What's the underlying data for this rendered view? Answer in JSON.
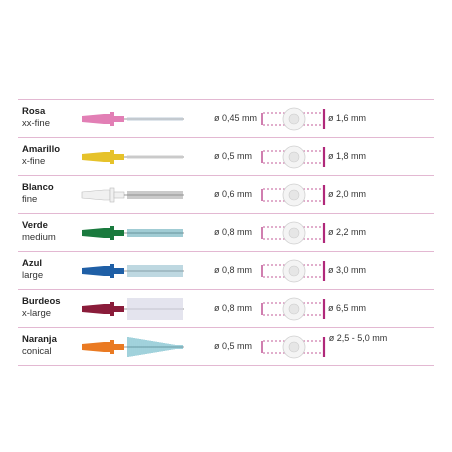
{
  "rows": [
    {
      "color_name": "Rosa",
      "size_name": "xx-fine",
      "wire": "ø 0,45 mm",
      "diameter": "ø 1,6 mm",
      "handle_color": "#e27fb5",
      "bristle_color": "#b9c8d6",
      "bristle": "thin"
    },
    {
      "color_name": "Amarillo",
      "size_name": "x-fine",
      "wire": "ø 0,5 mm",
      "diameter": "ø 1,8 mm",
      "handle_color": "#e6c22a",
      "bristle_color": "#c9c9c9",
      "bristle": "thin"
    },
    {
      "color_name": "Blanco",
      "size_name": "fine",
      "wire": "ø 0,6 mm",
      "diameter": "ø 2,0 mm",
      "handle_color": "#f0f0f0",
      "bristle_color": "#8a8a8a",
      "bristle": "medium"
    },
    {
      "color_name": "Verde",
      "size_name": "medium",
      "wire": "ø 0,8 mm",
      "diameter": "ø 2,2 mm",
      "handle_color": "#1a7a3e",
      "bristle_color": "#2e8fa0",
      "bristle": "medium"
    },
    {
      "color_name": "Azul",
      "size_name": "large",
      "wire": "ø 0,8 mm",
      "diameter": "ø 3,0 mm",
      "handle_color": "#1f5fa6",
      "bristle_color": "#6faabd",
      "bristle": "large"
    },
    {
      "color_name": "Burdeos",
      "size_name": "x-large",
      "wire": "ø 0,8 mm",
      "diameter": "ø 6,5 mm",
      "handle_color": "#8a1c3a",
      "bristle_color": "#d8d8e6",
      "bristle": "xlarge"
    },
    {
      "color_name": "Naranja",
      "size_name": "conical",
      "wire": "ø 0,5 mm",
      "diameter": "ø 2,5 - 5,0 mm",
      "handle_color": "#ea7a22",
      "bristle_color": "#2e9ab0",
      "bristle": "conical"
    }
  ],
  "accent_color": "#b0287a",
  "divider_color": "#e3b8d2"
}
